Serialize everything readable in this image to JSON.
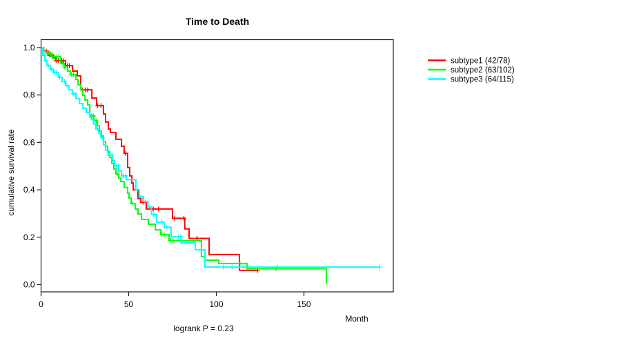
{
  "chart_data": {
    "type": "line",
    "subtype": "kaplan-meier-step",
    "title": "Time to Death",
    "xlabel": "Month",
    "ylabel": "cumulative survival rate",
    "annotation": "logrank P = 0.23",
    "legend_position": "right-outside",
    "grid": false,
    "x_axis": {
      "ticks": [
        {
          "v": 0,
          "label": "0"
        },
        {
          "v": 50,
          "label": "50"
        },
        {
          "v": 100,
          "label": "100"
        },
        {
          "v": 150,
          "label": "150"
        }
      ],
      "range_months": [
        0,
        201
      ]
    },
    "y_axis": {
      "ticks": [
        {
          "v": 1.0,
          "label": "1.0"
        },
        {
          "v": 0.8,
          "label": "0.8"
        },
        {
          "v": 0.6,
          "label": "0.6"
        },
        {
          "v": 0.4,
          "label": "0.4"
        },
        {
          "v": 0.2,
          "label": "0.2"
        },
        {
          "v": 0.0,
          "label": "0.0"
        }
      ],
      "range": [
        0.0,
        1.0
      ]
    },
    "series": [
      {
        "id": "subtype1",
        "label": "subtype1 (42/78)",
        "events": 42,
        "n": 78,
        "color": "#ff0000",
        "end_month": 123.5,
        "steps": [
          [
            0,
            1.0
          ],
          [
            1.5,
            0.985
          ],
          [
            4,
            0.968
          ],
          [
            7,
            0.957
          ],
          [
            8.5,
            0.945
          ],
          [
            14,
            0.924
          ],
          [
            18,
            0.901
          ],
          [
            20.7,
            0.881
          ],
          [
            22.6,
            0.822
          ],
          [
            29,
            0.787
          ],
          [
            31.7,
            0.755
          ],
          [
            35.6,
            0.72
          ],
          [
            36.8,
            0.686
          ],
          [
            38.4,
            0.657
          ],
          [
            39.6,
            0.642
          ],
          [
            42.7,
            0.613
          ],
          [
            45.9,
            0.584
          ],
          [
            47.4,
            0.554
          ],
          [
            49.4,
            0.494
          ],
          [
            50.6,
            0.459
          ],
          [
            51.8,
            0.429
          ],
          [
            52.6,
            0.4
          ],
          [
            55.3,
            0.363
          ],
          [
            56.9,
            0.348
          ],
          [
            60,
            0.319
          ],
          [
            75,
            0.28
          ],
          [
            82,
            0.235
          ],
          [
            84.5,
            0.195
          ],
          [
            95.9,
            0.127
          ],
          [
            113.2,
            0.06
          ]
        ],
        "censor_months": [
          3,
          5,
          6.3,
          8.6,
          9.8,
          11.8,
          12.8,
          15,
          16.2,
          23.5,
          25.2,
          26.6,
          32.3,
          34.2,
          48.2,
          56.6,
          58.2,
          64,
          67,
          76.2,
          81.5,
          89,
          123.5
        ]
      },
      {
        "id": "subtype2",
        "label": "subtype2 (63/102)",
        "events": 63,
        "n": 102,
        "color": "#00ff00",
        "end_month": 162.8,
        "steps": [
          [
            0,
            1.0
          ],
          [
            1.5,
            0.983
          ],
          [
            3.5,
            0.976
          ],
          [
            5.7,
            0.962
          ],
          [
            11.2,
            0.933
          ],
          [
            13.2,
            0.916
          ],
          [
            15.2,
            0.901
          ],
          [
            16.7,
            0.886
          ],
          [
            19.9,
            0.866
          ],
          [
            21.1,
            0.843
          ],
          [
            22.6,
            0.822
          ],
          [
            23.8,
            0.799
          ],
          [
            25,
            0.779
          ],
          [
            26.6,
            0.758
          ],
          [
            27.8,
            0.712
          ],
          [
            30.1,
            0.691
          ],
          [
            32.1,
            0.671
          ],
          [
            33.3,
            0.648
          ],
          [
            34.4,
            0.627
          ],
          [
            35.6,
            0.604
          ],
          [
            36.8,
            0.584
          ],
          [
            38,
            0.56
          ],
          [
            39.2,
            0.537
          ],
          [
            40.4,
            0.511
          ],
          [
            41.5,
            0.488
          ],
          [
            42.7,
            0.467
          ],
          [
            44.3,
            0.45
          ],
          [
            45.5,
            0.435
          ],
          [
            47.4,
            0.41
          ],
          [
            49.4,
            0.386
          ],
          [
            50.2,
            0.365
          ],
          [
            51.4,
            0.342
          ],
          [
            53.7,
            0.319
          ],
          [
            55.3,
            0.298
          ],
          [
            57.3,
            0.275
          ],
          [
            61.2,
            0.255
          ],
          [
            65.2,
            0.231
          ],
          [
            68.3,
            0.211
          ],
          [
            73,
            0.186
          ],
          [
            91.5,
            0.118
          ],
          [
            93.5,
            0.103
          ],
          [
            101.4,
            0.089
          ],
          [
            117.5,
            0.067
          ],
          [
            162.8,
            0.002
          ]
        ],
        "censor_months": [
          4.5,
          5.5,
          6.5,
          7.5,
          9,
          10,
          12.3,
          13.6,
          17.3,
          18.4,
          28.8,
          29.8,
          31.4,
          43.6,
          52,
          68.9,
          70.3,
          73.8,
          75.3,
          87,
          113.5,
          134
        ]
      },
      {
        "id": "subtype3",
        "label": "subtype3 (64/115)",
        "events": 64,
        "n": 115,
        "color": "#00ffff",
        "end_month": 193,
        "steps": [
          [
            0,
            1.0
          ],
          [
            1,
            0.968
          ],
          [
            2.2,
            0.945
          ],
          [
            3.3,
            0.924
          ],
          [
            5.3,
            0.91
          ],
          [
            6.9,
            0.895
          ],
          [
            10,
            0.875
          ],
          [
            12,
            0.857
          ],
          [
            14,
            0.84
          ],
          [
            15.9,
            0.822
          ],
          [
            17.9,
            0.805
          ],
          [
            19.9,
            0.785
          ],
          [
            21.9,
            0.764
          ],
          [
            23.8,
            0.744
          ],
          [
            25.8,
            0.726
          ],
          [
            27.8,
            0.706
          ],
          [
            28.9,
            0.697
          ],
          [
            30.1,
            0.677
          ],
          [
            31.3,
            0.657
          ],
          [
            32.9,
            0.639
          ],
          [
            34.1,
            0.619
          ],
          [
            35.6,
            0.59
          ],
          [
            36.8,
            0.566
          ],
          [
            38.4,
            0.546
          ],
          [
            40.7,
            0.523
          ],
          [
            41.9,
            0.502
          ],
          [
            44.3,
            0.479
          ],
          [
            45.9,
            0.459
          ],
          [
            48.6,
            0.443
          ],
          [
            54.1,
            0.4
          ],
          [
            56,
            0.371
          ],
          [
            58.5,
            0.351
          ],
          [
            61,
            0.327
          ],
          [
            63,
            0.295
          ],
          [
            66,
            0.263
          ],
          [
            70.3,
            0.242
          ],
          [
            74.2,
            0.202
          ],
          [
            79.9,
            0.176
          ],
          [
            88,
            0.147
          ],
          [
            93.5,
            0.074
          ]
        ],
        "censor_months": [
          1.8,
          2.8,
          4.2,
          5.8,
          7.6,
          8.8,
          10.5,
          13.4,
          14.8,
          18.3,
          19.4,
          29.6,
          32.2,
          35.1,
          38.9,
          40.5,
          43,
          44.2,
          46.8,
          48.3,
          57,
          59.5,
          64.3,
          69,
          71.8,
          78.3,
          79.6,
          104,
          109,
          135,
          193
        ]
      }
    ]
  }
}
